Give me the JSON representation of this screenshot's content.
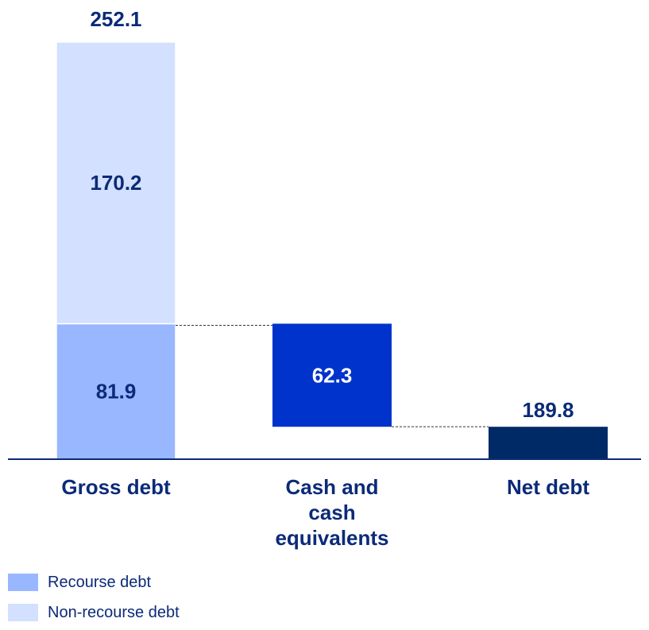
{
  "chart_data": {
    "type": "bar",
    "subtype": "waterfall",
    "categories": [
      "Gross debt",
      "Cash and cash equivalents",
      "Net debt"
    ],
    "category_label_lines": [
      [
        "Gross debt"
      ],
      [
        "Cash and",
        "cash",
        "equivalents"
      ],
      [
        "Net debt"
      ]
    ],
    "bars": [
      {
        "category": "Gross debt",
        "total": 252.1,
        "total_label": "252.1",
        "segments": [
          {
            "series": "Recourse debt",
            "value": 81.9,
            "label": "81.9"
          },
          {
            "series": "Non-recourse debt",
            "value": 170.2,
            "label": "170.2"
          }
        ]
      },
      {
        "category": "Cash and cash equivalents",
        "value": -62.3,
        "label": "62.3"
      },
      {
        "category": "Net debt",
        "value": 189.8,
        "label": "189.8"
      }
    ],
    "legend": [
      {
        "name": "Recourse debt",
        "color": "#99b7ff"
      },
      {
        "name": "Non-recourse debt",
        "color": "#d3e0ff"
      }
    ],
    "colors": {
      "recourse": "#99b7ff",
      "non_recourse": "#d3e0ff",
      "cash": "#0033cc",
      "net_debt": "#002a66",
      "label_dark": "#0b2a78",
      "label_light": "#ffffff",
      "axis": "#0b2a78",
      "connector": "#333333"
    },
    "ylim": [
      0,
      252.1
    ],
    "grid": false,
    "legend_position": "bottom-left"
  }
}
